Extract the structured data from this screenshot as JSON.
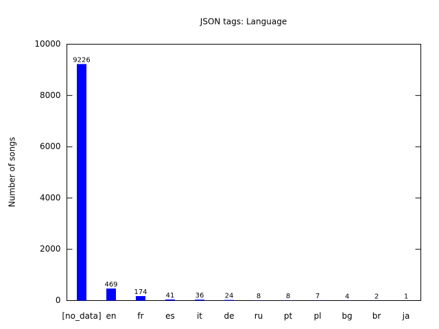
{
  "chart_data": {
    "type": "bar",
    "title": "JSON tags: Language",
    "y_label": "Number of songs",
    "categories": [
      "[no_data]",
      "en",
      "fr",
      "es",
      "it",
      "de",
      "ru",
      "pt",
      "pl",
      "bg",
      "br",
      "ja"
    ],
    "values": [
      9226,
      469,
      174,
      41,
      36,
      24,
      8,
      8,
      7,
      4,
      2,
      1
    ],
    "color": "#0000ff",
    "ylim": [
      0,
      10000
    ],
    "yticks": [
      0,
      2000,
      4000,
      6000,
      8000,
      10000
    ],
    "grid": false
  }
}
